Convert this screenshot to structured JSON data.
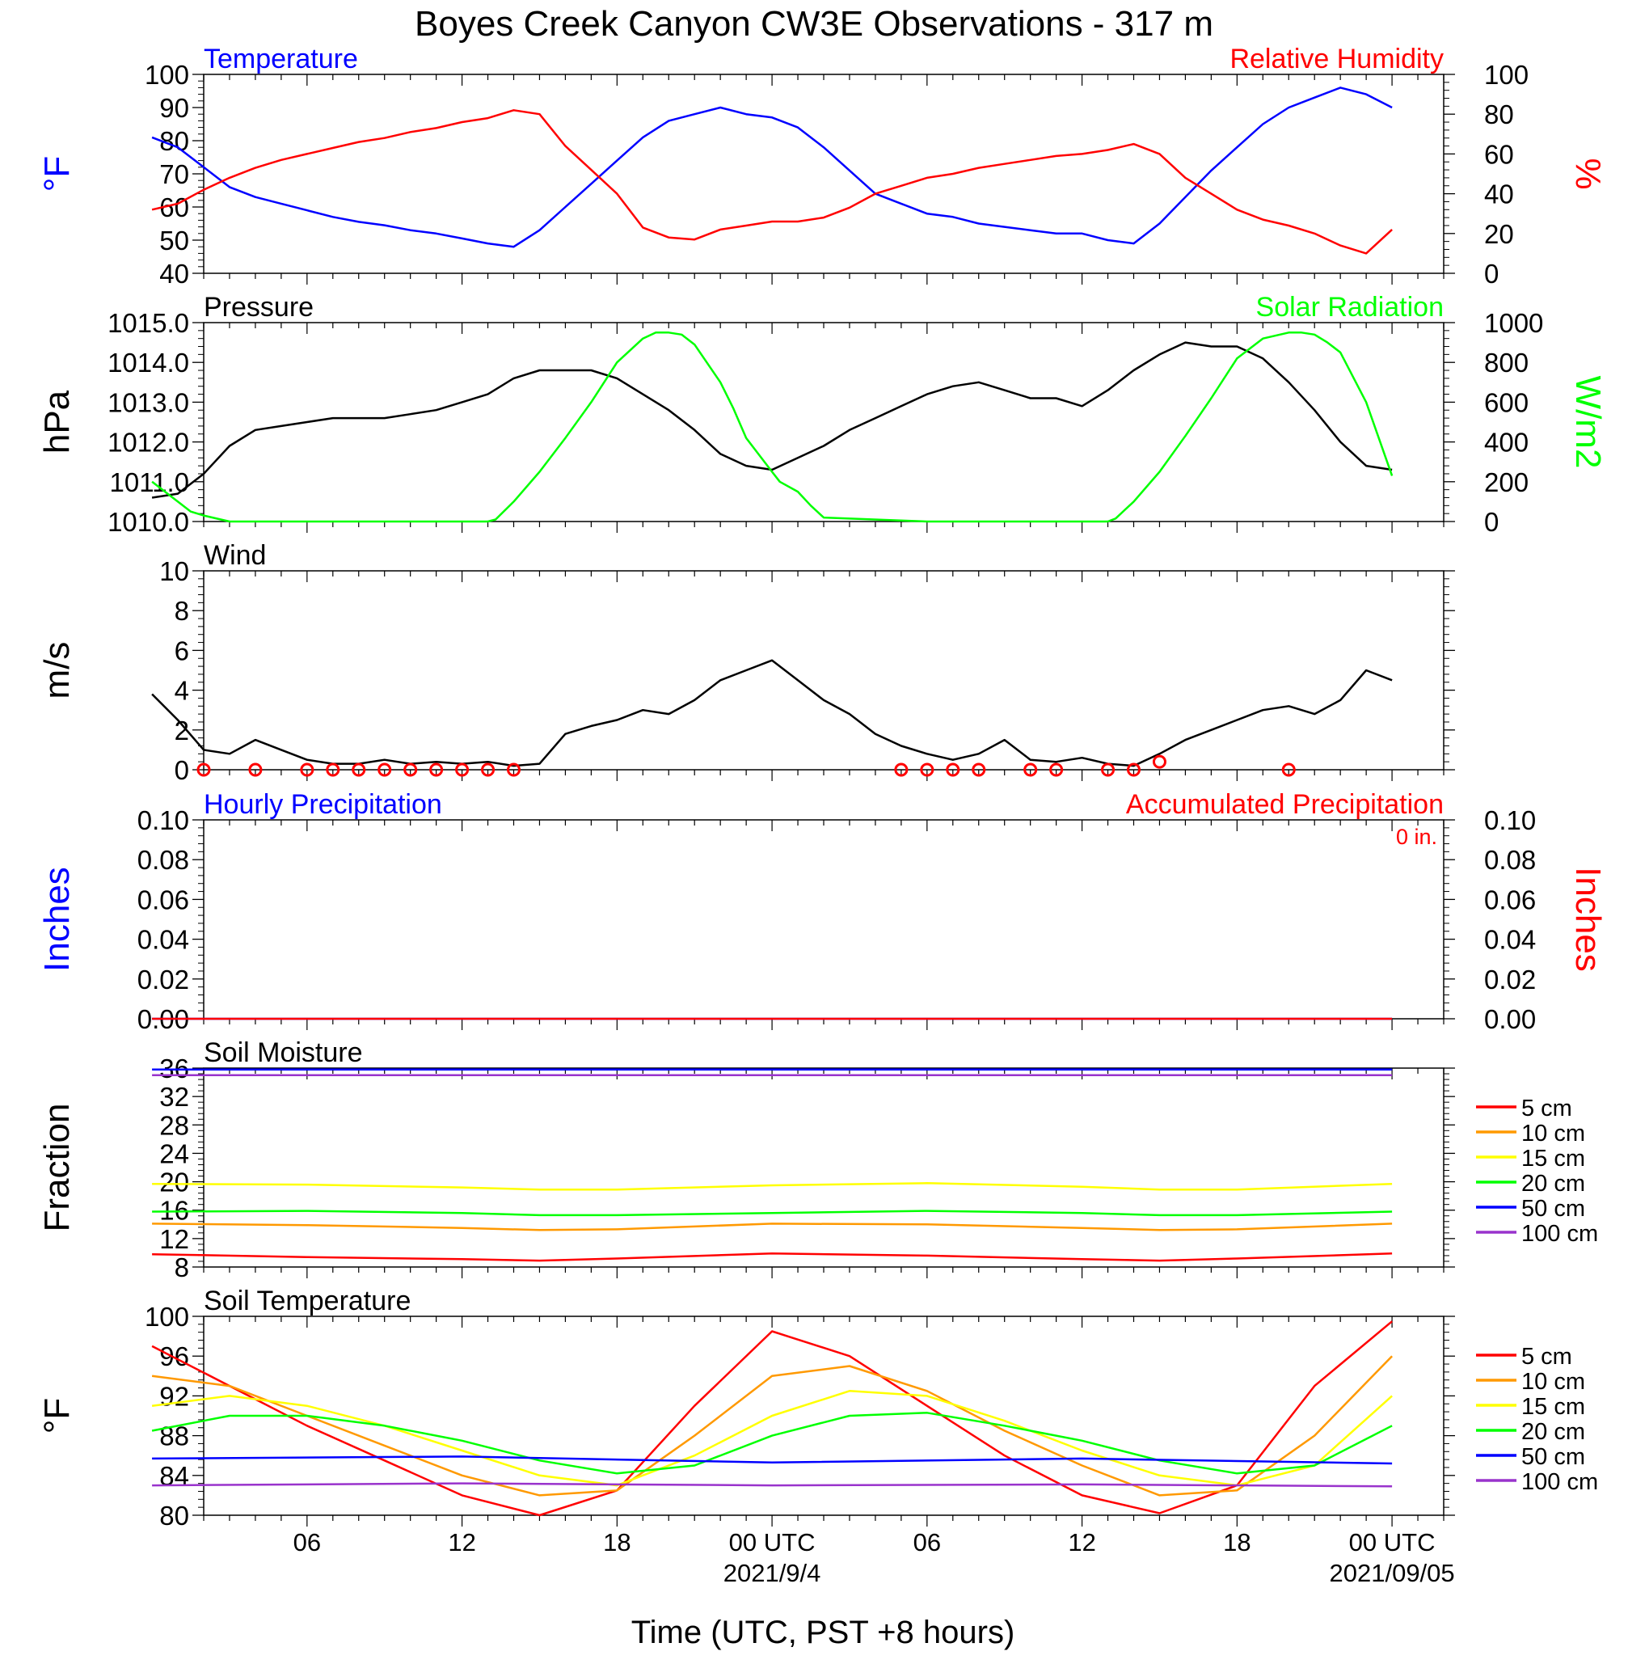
{
  "title": "Boyes Creek Canyon CW3E Observations - 317 m",
  "xlabel": "Time (UTC, PST +8 hours)",
  "x_ticks": [
    "06",
    "12",
    "18",
    "00 UTC",
    "06",
    "12",
    "18",
    "00 UTC"
  ],
  "x_tick_hours": [
    6,
    12,
    18,
    24,
    30,
    36,
    42,
    48
  ],
  "dates": [
    {
      "label": "2021/9/4",
      "hour": 24
    },
    {
      "label": "2021/09/05",
      "hour": 48
    }
  ],
  "colors": {
    "blue": "#0000ff",
    "red": "#ff0000",
    "green": "#00ff00",
    "black": "#000000",
    "orange": "#ff9900",
    "yellow": "#ffff00",
    "purple": "#9933cc"
  },
  "chart_data": [
    {
      "type": "line",
      "left_title": "Temperature",
      "right_title": "Relative Humidity",
      "ylabel_left": "°F",
      "ylabel_right": "%",
      "ylim_left": [
        40,
        100
      ],
      "ylim_right": [
        0,
        100
      ],
      "yticks_left": [
        "40",
        "50",
        "60",
        "70",
        "80",
        "90",
        "100"
      ],
      "yticks_right": [
        "0",
        "20",
        "40",
        "60",
        "80",
        "100"
      ],
      "series": [
        {
          "name": "Temperature",
          "axis": "left",
          "color": "blue",
          "x": [
            0,
            1,
            2,
            3,
            4,
            5,
            6,
            7,
            8,
            9,
            10,
            11,
            12,
            13,
            14,
            15,
            16,
            17,
            18,
            19,
            20,
            21,
            22,
            23,
            24,
            25,
            26,
            27,
            28,
            29,
            30,
            31,
            32,
            33,
            34,
            35,
            36,
            37,
            38,
            39,
            40,
            41,
            42,
            43,
            44,
            45,
            46,
            47,
            48
          ],
          "y": [
            81,
            78,
            72,
            66,
            63,
            61,
            59,
            57,
            55.5,
            54.5,
            53,
            52,
            50.5,
            49,
            48,
            53,
            60,
            67,
            74,
            81,
            86,
            88,
            90,
            88,
            87,
            84,
            78,
            71,
            64,
            61,
            58,
            57,
            55,
            54,
            53,
            52,
            52,
            50,
            49,
            55,
            63,
            71,
            78,
            85,
            90,
            93,
            96,
            94,
            90
          ]
        },
        {
          "name": "Relative Humidity",
          "axis": "right",
          "color": "red",
          "x": [
            0,
            1,
            2,
            3,
            4,
            5,
            6,
            7,
            8,
            9,
            10,
            11,
            12,
            13,
            14,
            15,
            16,
            17,
            18,
            19,
            20,
            21,
            22,
            23,
            24,
            25,
            26,
            27,
            28,
            29,
            30,
            31,
            32,
            33,
            34,
            35,
            36,
            37,
            38,
            39,
            40,
            41,
            42,
            43,
            44,
            45,
            46,
            47,
            48
          ],
          "y": [
            32,
            35,
            42,
            48,
            53,
            57,
            60,
            63,
            66,
            68,
            71,
            73,
            76,
            78,
            82,
            80,
            64,
            52,
            40,
            23,
            18,
            17,
            22,
            24,
            26,
            26,
            28,
            33,
            40,
            44,
            48,
            50,
            53,
            55,
            57,
            59,
            60,
            62,
            65,
            60,
            48,
            40,
            32,
            27,
            24,
            20,
            14,
            10,
            22
          ]
        }
      ]
    },
    {
      "type": "line",
      "left_title": "Pressure",
      "right_title": "Solar Radiation",
      "ylabel_left": "hPa",
      "ylabel_right": "W/m2",
      "ylim_left": [
        1010.0,
        1015.0
      ],
      "ylim_right": [
        0,
        1000
      ],
      "yticks_left": [
        "1010.0",
        "1011.0",
        "1012.0",
        "1013.0",
        "1014.0",
        "1015.0"
      ],
      "yticks_right": [
        "0",
        "200",
        "400",
        "600",
        "800",
        "1000"
      ],
      "series": [
        {
          "name": "Pressure",
          "axis": "left",
          "color": "black",
          "x": [
            0,
            1,
            2,
            3,
            4,
            5,
            6,
            7,
            8,
            9,
            10,
            11,
            12,
            13,
            14,
            15,
            16,
            17,
            18,
            19,
            20,
            21,
            22,
            23,
            24,
            25,
            26,
            27,
            28,
            29,
            30,
            31,
            32,
            33,
            34,
            35,
            36,
            37,
            38,
            39,
            40,
            41,
            42,
            43,
            44,
            45,
            46,
            47,
            48
          ],
          "y": [
            1010.6,
            1010.7,
            1011.2,
            1011.9,
            1012.3,
            1012.4,
            1012.5,
            1012.6,
            1012.6,
            1012.6,
            1012.7,
            1012.8,
            1013.0,
            1013.2,
            1013.6,
            1013.8,
            1013.8,
            1013.8,
            1013.6,
            1013.2,
            1012.8,
            1012.3,
            1011.7,
            1011.4,
            1011.3,
            1011.6,
            1011.9,
            1012.3,
            1012.6,
            1012.9,
            1013.2,
            1013.4,
            1013.5,
            1013.3,
            1013.1,
            1013.1,
            1012.9,
            1013.3,
            1013.8,
            1014.2,
            1014.5,
            1014.4,
            1014.4,
            1014.1,
            1013.5,
            1012.8,
            1012.0,
            1011.4,
            1011.3
          ]
        },
        {
          "name": "Solar Radiation",
          "axis": "right",
          "color": "green",
          "x": [
            0,
            0.5,
            1,
            1.5,
            2,
            3,
            6,
            9,
            12,
            13,
            13.3,
            14,
            15,
            16,
            17,
            18,
            19,
            19.5,
            20,
            20.5,
            21,
            22,
            22.5,
            23,
            24,
            24.3,
            25,
            25.5,
            26,
            30,
            36,
            37,
            37.3,
            38,
            39,
            40,
            41,
            42,
            43,
            44,
            44.5,
            45,
            45.5,
            46,
            47,
            48
          ],
          "y": [
            200,
            150,
            100,
            50,
            30,
            0,
            0,
            0,
            0,
            0,
            10,
            100,
            250,
            420,
            600,
            800,
            920,
            950,
            950,
            940,
            890,
            700,
            570,
            420,
            250,
            200,
            150,
            80,
            20,
            0,
            0,
            0,
            15,
            100,
            250,
            430,
            620,
            820,
            920,
            950,
            950,
            940,
            900,
            850,
            600,
            230
          ]
        }
      ]
    },
    {
      "type": "line",
      "left_title": "Wind",
      "ylabel_left": "m/s",
      "ylim_left": [
        0,
        10
      ],
      "yticks_left": [
        "0",
        "2",
        "4",
        "6",
        "8",
        "10"
      ],
      "series": [
        {
          "name": "Wind",
          "axis": "left",
          "color": "black",
          "x": [
            0,
            1,
            2,
            3,
            4,
            5,
            6,
            7,
            8,
            9,
            10,
            11,
            12,
            13,
            14,
            15,
            16,
            17,
            18,
            19,
            20,
            21,
            22,
            23,
            24,
            25,
            26,
            27,
            28,
            29,
            30,
            31,
            32,
            33,
            34,
            35,
            36,
            37,
            38,
            39,
            40,
            41,
            42,
            43,
            44,
            45,
            46,
            47,
            48
          ],
          "y": [
            3.8,
            2.5,
            1.0,
            0.8,
            1.5,
            1.0,
            0.5,
            0.3,
            0.3,
            0.5,
            0.3,
            0.4,
            0.3,
            0.4,
            0.2,
            0.3,
            1.8,
            2.2,
            2.5,
            3.0,
            2.8,
            3.5,
            4.5,
            5.0,
            5.5,
            4.5,
            3.5,
            2.8,
            1.8,
            1.2,
            0.8,
            0.5,
            0.8,
            1.5,
            0.5,
            0.4,
            0.6,
            0.3,
            0.2,
            0.8,
            1.5,
            2.0,
            2.5,
            3.0,
            3.2,
            2.8,
            3.5,
            5.0,
            4.5
          ]
        },
        {
          "name": "Calm",
          "axis": "left",
          "color": "red",
          "x": [
            2,
            4,
            6,
            7,
            8,
            9,
            10,
            11,
            12,
            13,
            14,
            29,
            30,
            31,
            32,
            34,
            35,
            37,
            38,
            39,
            44
          ],
          "y": [
            0,
            0,
            0,
            0,
            0,
            0,
            0,
            0,
            0,
            0,
            0,
            0,
            0,
            0,
            0,
            0,
            0,
            0,
            0,
            0.4,
            0
          ]
        }
      ]
    },
    {
      "type": "line",
      "left_title": "Hourly Precipitation",
      "right_title": "Accumulated Precipitation",
      "annotation": "0 in.",
      "ylabel_left": "Inches",
      "ylabel_right": "Inches",
      "ylim_left": [
        0,
        0.1
      ],
      "ylim_right": [
        0,
        0.1
      ],
      "yticks_left": [
        "0.00",
        "0.02",
        "0.04",
        "0.06",
        "0.08",
        "0.10"
      ],
      "yticks_right": [
        "0.00",
        "0.02",
        "0.04",
        "0.06",
        "0.08",
        "0.10"
      ],
      "series": [
        {
          "name": "Hourly Precipitation",
          "axis": "left",
          "color": "blue",
          "x": [
            0,
            48
          ],
          "y": [
            0,
            0
          ]
        },
        {
          "name": "Accumulated Precipitation",
          "axis": "right",
          "color": "red",
          "x": [
            0,
            48
          ],
          "y": [
            0,
            0
          ]
        }
      ]
    },
    {
      "type": "line",
      "left_title": "Soil Moisture",
      "ylabel_left": "Fraction",
      "ylim_left": [
        8,
        36
      ],
      "yticks_left": [
        "8",
        "12",
        "16",
        "20",
        "24",
        "28",
        "32",
        "36"
      ],
      "legend": "right",
      "series": [
        {
          "name": "5 cm",
          "color": "red",
          "x": [
            0,
            6,
            12,
            15,
            18,
            24,
            30,
            36,
            39,
            42,
            48
          ],
          "y": [
            9.8,
            9.4,
            9.1,
            8.9,
            9.2,
            9.9,
            9.6,
            9.1,
            8.9,
            9.2,
            9.9
          ]
        },
        {
          "name": "10 cm",
          "color": "orange",
          "x": [
            0,
            6,
            12,
            15,
            18,
            24,
            30,
            36,
            39,
            42,
            48
          ],
          "y": [
            14.1,
            13.9,
            13.5,
            13.2,
            13.3,
            14.1,
            14.0,
            13.5,
            13.2,
            13.3,
            14.1
          ]
        },
        {
          "name": "15 cm",
          "color": "yellow",
          "x": [
            0,
            6,
            12,
            15,
            18,
            24,
            30,
            36,
            39,
            42,
            48
          ],
          "y": [
            19.7,
            19.6,
            19.2,
            18.9,
            18.9,
            19.5,
            19.8,
            19.3,
            18.9,
            18.9,
            19.7
          ]
        },
        {
          "name": "20 cm",
          "color": "green",
          "x": [
            0,
            6,
            12,
            15,
            18,
            24,
            30,
            36,
            39,
            42,
            48
          ],
          "y": [
            15.8,
            15.9,
            15.6,
            15.3,
            15.3,
            15.6,
            15.9,
            15.6,
            15.3,
            15.3,
            15.8
          ]
        },
        {
          "name": "50 cm",
          "color": "blue",
          "x": [
            0,
            48
          ],
          "y": [
            35.8,
            35.8
          ]
        },
        {
          "name": "100 cm",
          "color": "purple",
          "x": [
            0,
            48
          ],
          "y": [
            35.0,
            35.0
          ]
        }
      ]
    },
    {
      "type": "line",
      "left_title": "Soil Temperature",
      "ylabel_left": "°F",
      "ylim_left": [
        80,
        100
      ],
      "yticks_left": [
        "80",
        "84",
        "88",
        "92",
        "96",
        "100"
      ],
      "legend": "right",
      "series": [
        {
          "name": "5 cm",
          "color": "red",
          "x": [
            0,
            3,
            6,
            9,
            12,
            15,
            18,
            21,
            24,
            27,
            30,
            33,
            36,
            39,
            42,
            45,
            48
          ],
          "y": [
            97,
            93,
            89,
            85.5,
            82,
            80,
            82.5,
            91,
            98.5,
            96,
            91,
            86,
            82,
            80.2,
            83,
            93,
            99.5
          ]
        },
        {
          "name": "10 cm",
          "color": "orange",
          "x": [
            0,
            3,
            6,
            9,
            12,
            15,
            18,
            21,
            24,
            27,
            30,
            33,
            36,
            39,
            42,
            45,
            48
          ],
          "y": [
            94,
            93,
            90,
            87,
            84,
            82,
            82.5,
            88,
            94,
            95,
            92.5,
            88.5,
            85,
            82,
            82.5,
            88,
            96
          ]
        },
        {
          "name": "15 cm",
          "color": "yellow",
          "x": [
            0,
            3,
            6,
            9,
            12,
            15,
            18,
            21,
            24,
            27,
            30,
            33,
            36,
            39,
            42,
            45,
            48
          ],
          "y": [
            91,
            92,
            91,
            89,
            86.5,
            84,
            83,
            86,
            90,
            92.5,
            92,
            89.5,
            86.5,
            84,
            83,
            85,
            92
          ]
        },
        {
          "name": "20 cm",
          "color": "green",
          "x": [
            0,
            3,
            6,
            9,
            12,
            15,
            18,
            21,
            24,
            27,
            30,
            33,
            36,
            39,
            42,
            45,
            48
          ],
          "y": [
            88.5,
            90,
            90,
            89,
            87.5,
            85.5,
            84.2,
            85,
            88,
            90,
            90.3,
            89,
            87.5,
            85.5,
            84.2,
            85,
            89
          ]
        },
        {
          "name": "50 cm",
          "color": "blue",
          "x": [
            0,
            12,
            24,
            36,
            48
          ],
          "y": [
            85.7,
            85.9,
            85.3,
            85.7,
            85.2
          ]
        },
        {
          "name": "100 cm",
          "color": "purple",
          "x": [
            0,
            12,
            24,
            36,
            48
          ],
          "y": [
            83.0,
            83.2,
            83.0,
            83.1,
            82.9
          ]
        }
      ]
    }
  ]
}
